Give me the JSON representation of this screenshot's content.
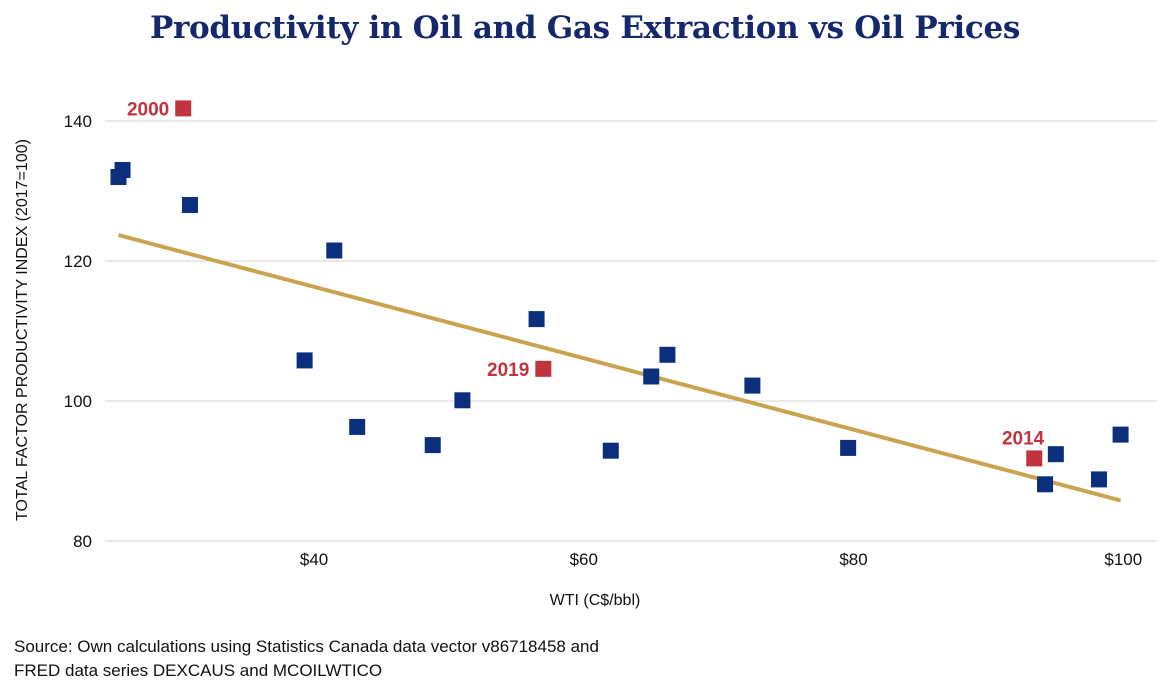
{
  "page": {
    "title": "Productivity in Oil and Gas Extraction vs Oil Prices",
    "source_line1": "Source: Own calculations using Statistics Canada data vector v86718458 and",
    "source_line2": "FRED data series DEXCAUS and MCOILWTICO"
  },
  "chart_data": {
    "type": "scatter",
    "title": "Productivity in Oil and Gas Extraction vs Oil Prices",
    "xlabel": "WTI (C$/bbl)",
    "ylabel": "TOTAL FACTOR PRODUCTIVITY INDEX (2017=100)",
    "xlim": [
      24.5,
      102.5
    ],
    "ylim": [
      78,
      143
    ],
    "x_ticks": [
      40,
      60,
      80,
      100
    ],
    "x_tick_labels": [
      "$40",
      "$60",
      "$80",
      "$100"
    ],
    "y_ticks": [
      80,
      100,
      120,
      140
    ],
    "y_tick_labels": [
      "80",
      "100",
      "120",
      "140"
    ],
    "grid": "horizontal",
    "colors": {
      "points": "#0b2f7d",
      "highlight": "#c0353d",
      "trend": "#c9a34f",
      "title": "#14286b"
    },
    "points": [
      {
        "x": 25.5,
        "y": 132
      },
      {
        "x": 25.8,
        "y": 133
      },
      {
        "x": 30.8,
        "y": 128
      },
      {
        "x": 39.3,
        "y": 105.8
      },
      {
        "x": 41.5,
        "y": 121.5
      },
      {
        "x": 43.2,
        "y": 96.3
      },
      {
        "x": 48.8,
        "y": 93.7
      },
      {
        "x": 51.0,
        "y": 100.1
      },
      {
        "x": 56.5,
        "y": 111.7
      },
      {
        "x": 62.0,
        "y": 92.9
      },
      {
        "x": 65.0,
        "y": 103.5
      },
      {
        "x": 66.2,
        "y": 106.6
      },
      {
        "x": 72.5,
        "y": 102.2
      },
      {
        "x": 79.6,
        "y": 93.3
      },
      {
        "x": 94.2,
        "y": 88.1
      },
      {
        "x": 95.0,
        "y": 92.4
      },
      {
        "x": 98.2,
        "y": 88.8
      },
      {
        "x": 99.8,
        "y": 95.2
      }
    ],
    "highlighted": [
      {
        "label": "2000",
        "x": 30.3,
        "y": 141.8,
        "label_side": "left"
      },
      {
        "label": "2019",
        "x": 57.0,
        "y": 104.6,
        "label_side": "left"
      },
      {
        "label": "2014",
        "x": 93.4,
        "y": 91.8,
        "label_side": "above-left"
      }
    ],
    "trendline": {
      "x": [
        25.5,
        99.8
      ],
      "y": [
        123.7,
        85.8
      ]
    }
  }
}
